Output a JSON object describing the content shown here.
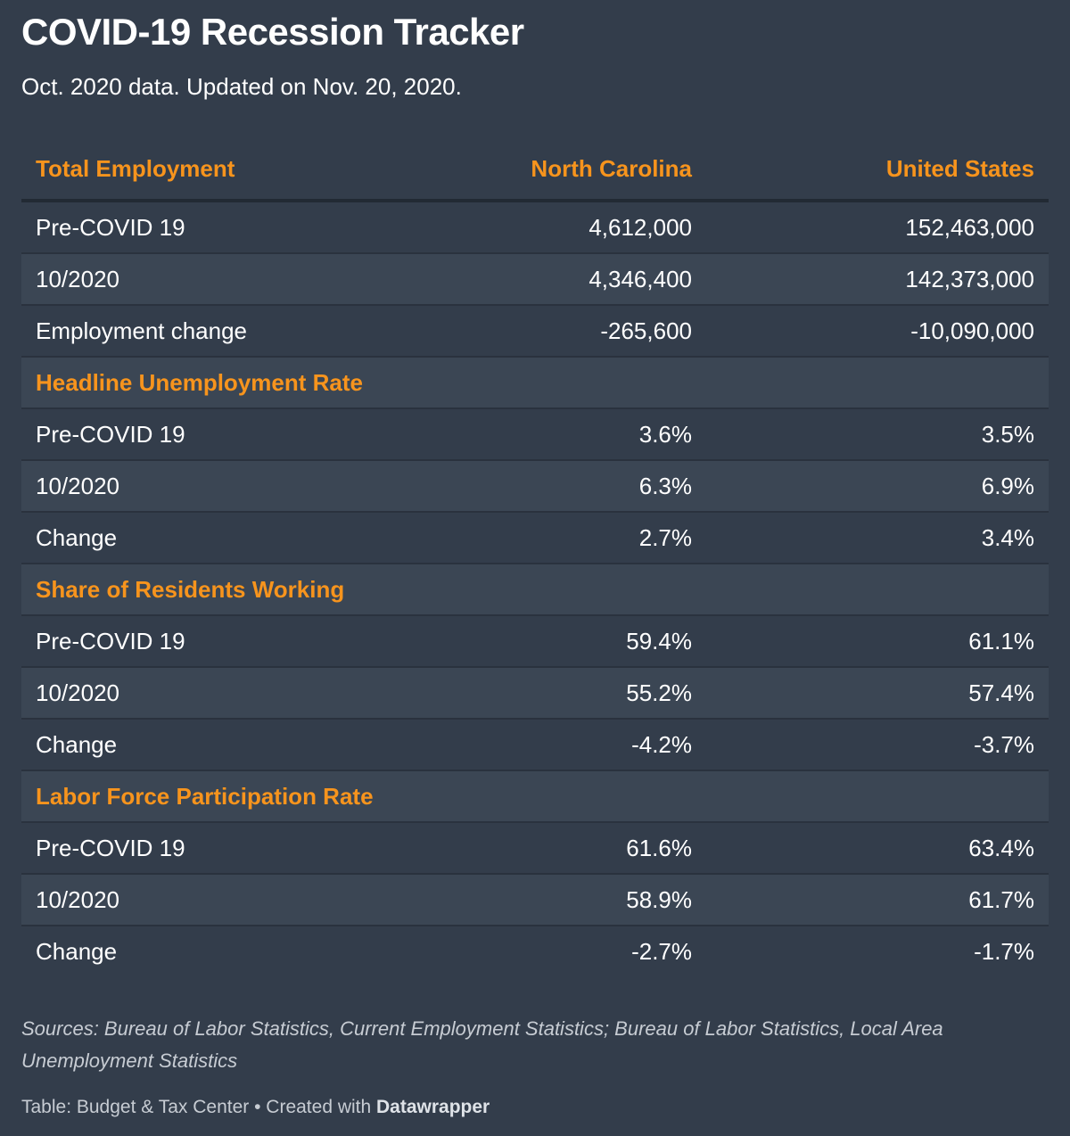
{
  "title": "COVID-19 Recession Tracker",
  "subtitle": "Oct. 2020 data. Updated on Nov. 20, 2020.",
  "chart_data": {
    "type": "table",
    "columns": [
      "Total Employment",
      "North Carolina",
      "United States"
    ],
    "rows": [
      {
        "kind": "data",
        "label": "Pre-COVID 19",
        "nc": "4,612,000",
        "us": "152,463,000"
      },
      {
        "kind": "data",
        "label": "10/2020",
        "nc": "4,346,400",
        "us": "142,373,000"
      },
      {
        "kind": "data",
        "label": "Employment change",
        "nc": "-265,600",
        "us": "-10,090,000"
      },
      {
        "kind": "section",
        "label": "Headline Unemployment Rate"
      },
      {
        "kind": "data",
        "label": "Pre-COVID 19",
        "nc": "3.6%",
        "us": "3.5%"
      },
      {
        "kind": "data",
        "label": "10/2020",
        "nc": "6.3%",
        "us": "6.9%"
      },
      {
        "kind": "data",
        "label": "Change",
        "nc": "2.7%",
        "us": "3.4%"
      },
      {
        "kind": "section",
        "label": "Share of Residents Working"
      },
      {
        "kind": "data",
        "label": "Pre-COVID 19",
        "nc": "59.4%",
        "us": "61.1%"
      },
      {
        "kind": "data",
        "label": "10/2020",
        "nc": "55.2%",
        "us": "57.4%"
      },
      {
        "kind": "data",
        "label": "Change",
        "nc": "-4.2%",
        "us": "-3.7%"
      },
      {
        "kind": "section",
        "label": "Labor Force Participation Rate"
      },
      {
        "kind": "data",
        "label": "Pre-COVID 19",
        "nc": "61.6%",
        "us": "63.4%"
      },
      {
        "kind": "data",
        "label": "10/2020",
        "nc": "58.9%",
        "us": "61.7%"
      },
      {
        "kind": "data",
        "label": "Change",
        "nc": "-2.7%",
        "us": "-1.7%"
      }
    ]
  },
  "sources": "Sources: Bureau of Labor Statistics, Current Employment Statistics; Bureau of Labor Statistics, Local Area Unemployment Statistics",
  "footer": {
    "prefix": "Table: Budget & Tax Center • Created with ",
    "brand": "Datawrapper"
  },
  "colors": {
    "background": "#333d4b",
    "accent": "#f7941d",
    "row_shade": "#3b4654",
    "text": "#ffffff"
  }
}
